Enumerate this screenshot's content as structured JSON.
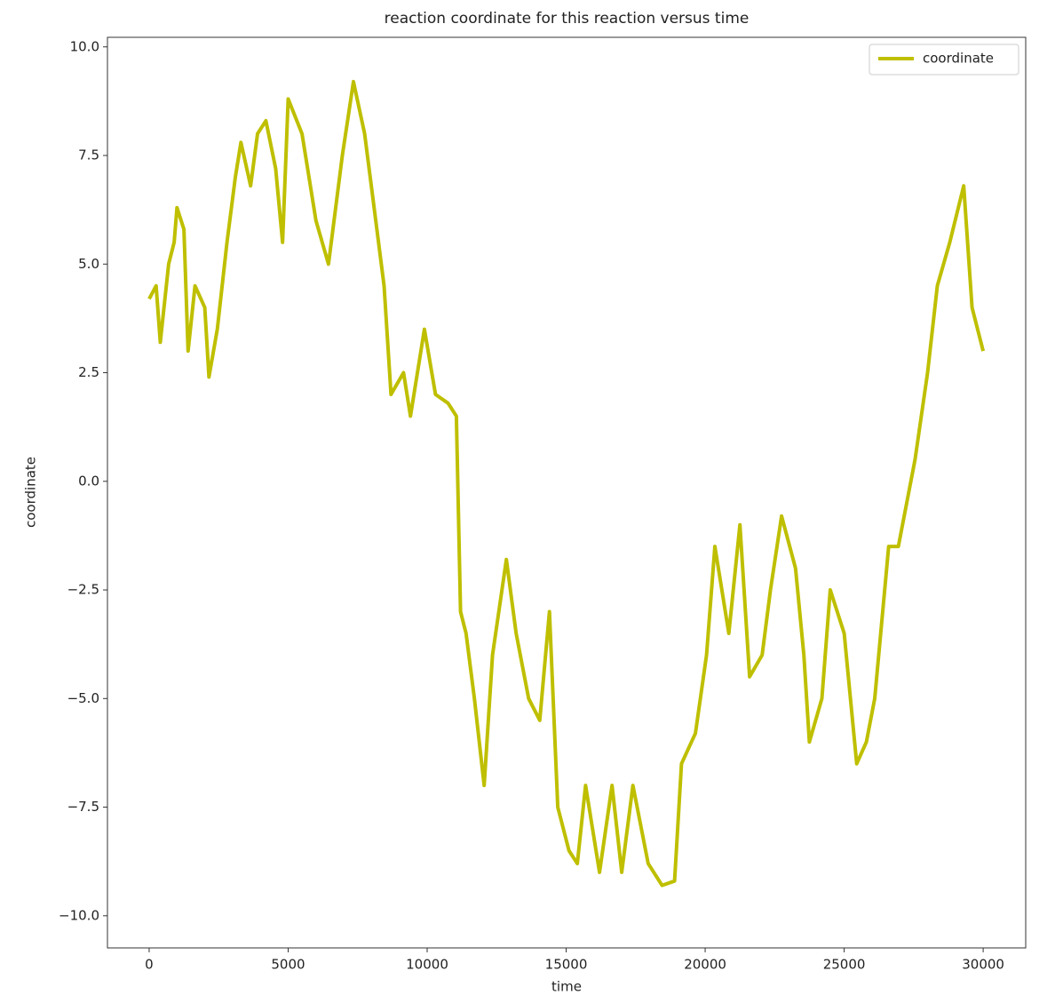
{
  "chart_data": {
    "type": "line",
    "title": "reaction coordinate for this reaction versus time",
    "x_label": "time",
    "y_label": "coordinate",
    "x": [
      0,
      250,
      400,
      700,
      900,
      1000,
      1250,
      1400,
      1650,
      2000,
      2150,
      2450,
      2800,
      3100,
      3300,
      3650,
      3900,
      4200,
      4550,
      4800,
      5000,
      5500,
      6000,
      6450,
      6950,
      7350,
      7750,
      8050,
      8450,
      8700,
      9150,
      9400,
      9900,
      10300,
      10750,
      11050,
      11200,
      11400,
      11700,
      12050,
      12350,
      12850,
      13200,
      13650,
      14050,
      14400,
      14700,
      15100,
      15400,
      15700,
      16200,
      16650,
      17000,
      17400,
      17950,
      18450,
      18900,
      19150,
      19650,
      20050,
      20350,
      20850,
      21250,
      21600,
      22050,
      22350,
      22750,
      23250,
      23550,
      23750,
      24200,
      24500,
      25000,
      25450,
      25800,
      26100,
      26600,
      26950,
      27550,
      28000,
      28350,
      28800,
      29300,
      29600,
      30000
    ],
    "series": [
      {
        "name": "coordinate",
        "color": "#bfbf00",
        "values": [
          4.2,
          4.5,
          3.2,
          5.0,
          5.5,
          6.3,
          5.8,
          3.0,
          4.5,
          4.0,
          2.4,
          3.5,
          5.5,
          7.0,
          7.8,
          6.8,
          8.0,
          8.3,
          7.2,
          5.5,
          8.8,
          8.0,
          6.0,
          5.0,
          7.5,
          9.2,
          8.0,
          6.5,
          4.5,
          2.0,
          2.5,
          1.5,
          3.5,
          2.0,
          1.8,
          1.5,
          -3.0,
          -3.5,
          -5.0,
          -7.0,
          -4.0,
          -1.8,
          -3.5,
          -5.0,
          -5.5,
          -3.0,
          -7.5,
          -8.5,
          -8.8,
          -7.0,
          -9.0,
          -7.0,
          -9.0,
          -7.0,
          -8.8,
          -9.3,
          -9.2,
          -6.5,
          -5.8,
          -4.0,
          -1.5,
          -3.5,
          -1.0,
          -4.5,
          -4.0,
          -2.5,
          -0.8,
          -2.0,
          -4.0,
          -6.0,
          -5.0,
          -2.5,
          -3.5,
          -6.5,
          -6.0,
          -5.0,
          -1.5,
          -1.5,
          0.5,
          2.5,
          4.5,
          5.5,
          6.8,
          4.0,
          3.0
        ]
      }
    ],
    "xlim": [
      -1500,
      31530
    ],
    "ylim": [
      -10.74,
      10.22
    ],
    "xticks": [
      0,
      5000,
      10000,
      15000,
      20000,
      25000,
      30000
    ],
    "yticks": [
      {
        "value": -10,
        "label": "−10.0"
      },
      {
        "value": -7.5,
        "label": "−7.5"
      },
      {
        "value": -5,
        "label": "−5.0"
      },
      {
        "value": -2.5,
        "label": "−2.5"
      },
      {
        "value": 0,
        "label": "0.0"
      },
      {
        "value": 2.5,
        "label": "2.5"
      },
      {
        "value": 5,
        "label": "5.0"
      },
      {
        "value": 7.5,
        "label": "7.5"
      },
      {
        "value": 10,
        "label": "10.0"
      }
    ],
    "legend": "upper right",
    "grid": false
  }
}
